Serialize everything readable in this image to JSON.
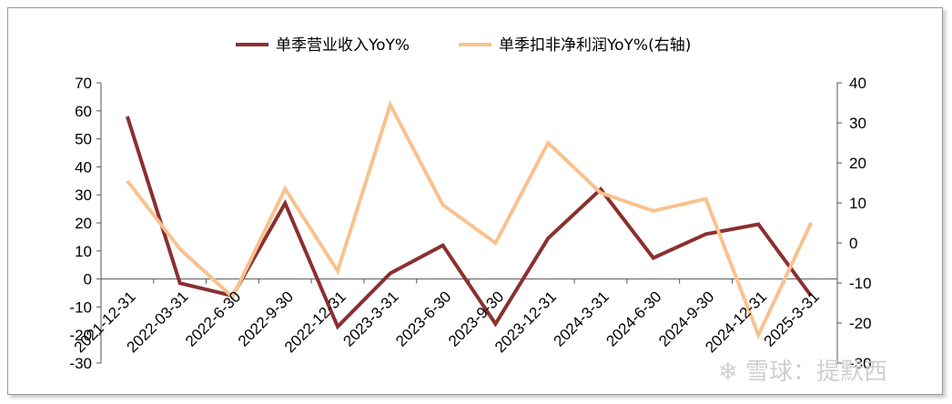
{
  "chart_data": {
    "type": "line",
    "categories": [
      "2021-12-31",
      "2022-03-31",
      "2022-6-30",
      "2022-9-30",
      "2022-12-31",
      "2023-3-31",
      "2023-6-30",
      "2023-9-30",
      "2023-12-31",
      "2024-3-31",
      "2024-6-30",
      "2024-9-30",
      "2024-12-31",
      "2025-3-31"
    ],
    "series": [
      {
        "name": "单季营业收入YoY%",
        "axis": "left",
        "color": "#8b2f2f",
        "values": [
          58,
          -1.5,
          -6,
          27,
          -17,
          2,
          12,
          -16,
          14.5,
          32,
          7.5,
          16,
          19.5,
          -6
        ]
      },
      {
        "name": "单季扣非净利润YoY%(右轴)",
        "axis": "right",
        "color": "#f9c28e",
        "values": [
          15.5,
          -1.5,
          -13.5,
          13.5,
          -7,
          34.5,
          9.5,
          0,
          25,
          12.5,
          8,
          11,
          -23,
          5
        ]
      }
    ],
    "y_left": {
      "min": -30,
      "max": 70,
      "step": 10,
      "ticks": [
        "-30",
        "-20",
        "-10",
        "0",
        "10",
        "20",
        "30",
        "40",
        "50",
        "60",
        "70"
      ]
    },
    "y_right": {
      "min": -30,
      "max": 40,
      "step": 10,
      "ticks": [
        "-30",
        "-20",
        "-10",
        "0",
        "10",
        "20",
        "30",
        "40"
      ]
    },
    "legend_position": "top",
    "grid": false
  },
  "watermark": {
    "logo": "❄",
    "text": "雪球：提默西"
  }
}
